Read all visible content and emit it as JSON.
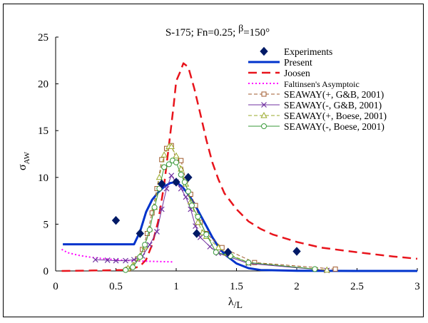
{
  "chart_data": {
    "type": "line",
    "title": {
      "prefix": "S-175; Fn=0.25; ",
      "beta": "β",
      "suffix": "=150°"
    },
    "ylabel": {
      "main": "σ",
      "sub": "AW"
    },
    "xlabel": {
      "num": "λ",
      "den": "/L"
    },
    "xlim": [
      0,
      3
    ],
    "ylim": [
      0,
      25
    ],
    "xticks": [
      "0",
      "0.5",
      "1",
      "1.5",
      "2",
      "2.5",
      "3"
    ],
    "yticks": [
      "0",
      "5",
      "10",
      "15",
      "20",
      "25"
    ],
    "grid": false,
    "legend_position": "top-right",
    "series": [
      {
        "name": "Experiments",
        "kind": "markers",
        "color": "#001a66",
        "marker": "diamond",
        "x": [
          0.5,
          0.7,
          0.88,
          1.0,
          1.1,
          1.17,
          1.43,
          2.0
        ],
        "y": [
          5.4,
          4.0,
          9.3,
          9.5,
          10.0,
          4.0,
          2.0,
          2.1
        ]
      },
      {
        "name": "Present",
        "kind": "line",
        "color": "#0033cc",
        "dash": "none",
        "width": 3,
        "x": [
          0.06,
          0.65,
          0.7,
          0.75,
          0.8,
          0.85,
          0.9,
          0.95,
          1.0,
          1.05,
          1.1,
          1.15,
          1.2,
          1.25,
          1.3,
          1.35,
          1.4,
          1.5,
          1.6,
          1.7,
          2.0,
          2.5,
          3.0
        ],
        "y": [
          2.85,
          2.85,
          4.2,
          6.3,
          7.6,
          8.4,
          9.0,
          9.4,
          9.5,
          9.0,
          8.2,
          7.2,
          6.0,
          4.8,
          3.6,
          2.6,
          1.8,
          0.8,
          0.3,
          0.1,
          0.02,
          0.0,
          0.0
        ]
      },
      {
        "name": "Joosen",
        "kind": "line",
        "color": "#e8141c",
        "dash": "12,7",
        "width": 2.5,
        "x": [
          0.05,
          0.6,
          0.7,
          0.75,
          0.8,
          0.85,
          0.9,
          0.95,
          0.98,
          1.0,
          1.03,
          1.06,
          1.1,
          1.15,
          1.2,
          1.25,
          1.3,
          1.35,
          1.4,
          1.5,
          1.6,
          1.7,
          1.8,
          2.0,
          2.2,
          2.5,
          2.8,
          3.0
        ],
        "y": [
          0.0,
          0.1,
          0.5,
          1.2,
          2.8,
          5.3,
          9.2,
          14.5,
          17.8,
          20.3,
          21.2,
          22.2,
          21.8,
          19.5,
          16.8,
          14.0,
          11.6,
          9.8,
          8.3,
          6.6,
          5.3,
          4.5,
          3.9,
          3.1,
          2.5,
          2.0,
          1.55,
          1.3
        ]
      },
      {
        "name": "Faltinsen's Asymptoic",
        "kind": "line",
        "color": "#ff00ff",
        "dash": "2,3",
        "width": 2,
        "x": [
          0.05,
          0.1,
          0.2,
          0.3,
          0.4,
          0.5,
          0.6,
          0.7,
          0.8,
          0.9,
          0.98
        ],
        "y": [
          2.3,
          1.95,
          1.65,
          1.45,
          1.3,
          1.2,
          1.12,
          1.06,
          1.02,
          0.99,
          0.97
        ]
      },
      {
        "name": "SEAWAY(+, G&B, 2001)",
        "kind": "linemarker",
        "color": "#a05a2c",
        "marker": "square",
        "dash": "5,3",
        "width": 1,
        "x": [
          0.6,
          0.68,
          0.72,
          0.76,
          0.8,
          0.84,
          0.88,
          0.92,
          0.96,
          1.0,
          1.04,
          1.08,
          1.12,
          1.16,
          1.2,
          1.25,
          1.38,
          1.65,
          2.32
        ],
        "y": [
          0.2,
          1.3,
          2.3,
          4.0,
          6.2,
          8.8,
          11.9,
          13.1,
          13.4,
          12.0,
          11.8,
          9.7,
          8.2,
          7.0,
          5.2,
          4.0,
          2.5,
          0.9,
          0.2
        ]
      },
      {
        "name": "SEAWAY(-, G&B, 2001)",
        "kind": "linemarker",
        "color": "#7030a0",
        "marker": "x",
        "dash": "none",
        "width": 1,
        "x": [
          0.33,
          0.43,
          0.5,
          0.58,
          0.65,
          0.72,
          0.78,
          0.84,
          0.88,
          0.92,
          0.96,
          1.0,
          1.04,
          1.08,
          1.12,
          1.16,
          1.2,
          1.28,
          1.35,
          1.6,
          2.25
        ],
        "y": [
          1.2,
          1.15,
          1.1,
          1.1,
          1.2,
          1.6,
          2.8,
          4.2,
          6.6,
          8.8,
          10.2,
          9.5,
          8.8,
          7.9,
          6.6,
          4.8,
          3.6,
          2.6,
          1.9,
          0.8,
          0.05
        ]
      },
      {
        "name": "SEAWAY(+, Boese, 2001)",
        "kind": "linemarker",
        "color": "#9aaa2a",
        "marker": "triangle",
        "dash": "5,3",
        "width": 1,
        "x": [
          0.6,
          0.64,
          0.7,
          0.74,
          0.78,
          0.82,
          0.86,
          0.9,
          0.94,
          0.96,
          1.0,
          1.04,
          1.08,
          1.12,
          1.18,
          1.22,
          1.25,
          1.35,
          1.42,
          1.6,
          2.25
        ],
        "y": [
          0.3,
          0.6,
          1.6,
          2.6,
          4.5,
          6.8,
          10.0,
          12.4,
          13.3,
          13.3,
          12.3,
          10.9,
          9.3,
          7.4,
          5.2,
          4.1,
          3.7,
          2.5,
          1.9,
          0.9,
          0.1
        ]
      },
      {
        "name": "SEAWAY(-, Boese, 2001)",
        "kind": "linemarker",
        "color": "#3a9a3a",
        "marker": "circle",
        "dash": "none",
        "width": 1,
        "x": [
          0.58,
          0.64,
          0.7,
          0.74,
          0.78,
          0.82,
          0.86,
          0.9,
          0.94,
          0.97,
          1.0,
          1.04,
          1.07,
          1.1,
          1.13,
          1.18,
          1.25,
          1.33,
          1.45,
          1.6,
          2.15
        ],
        "y": [
          0.1,
          0.4,
          1.5,
          2.8,
          4.4,
          6.8,
          8.8,
          11.1,
          11.4,
          11.8,
          11.6,
          10.3,
          9.5,
          8.5,
          7.0,
          5.8,
          3.9,
          2.0,
          1.6,
          0.9,
          0.2
        ]
      }
    ]
  }
}
